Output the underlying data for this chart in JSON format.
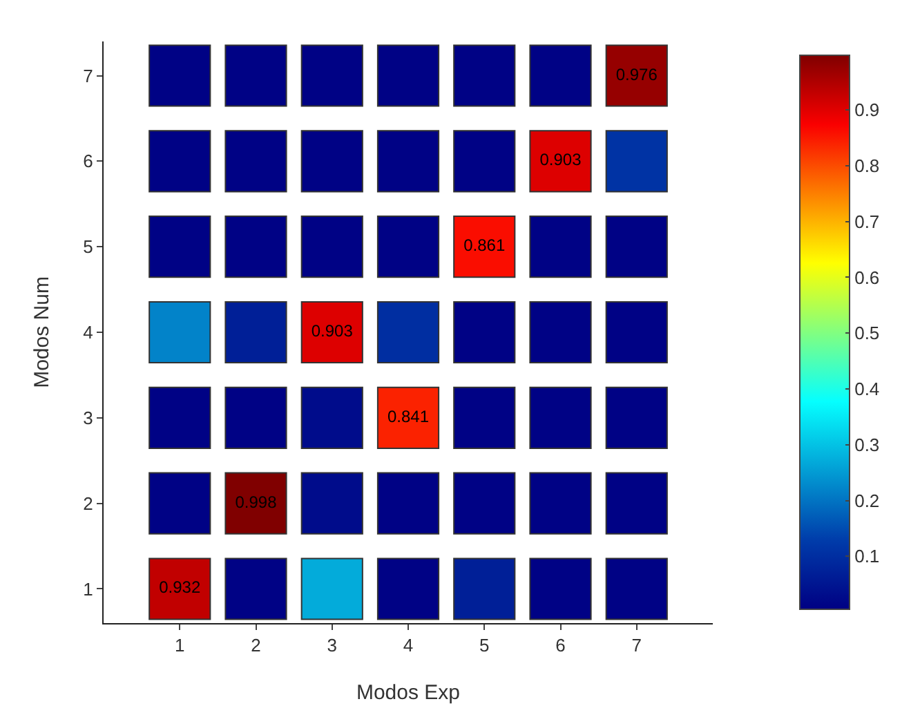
{
  "chart_data": {
    "type": "heatmap",
    "xlabel": "Modos Exp",
    "ylabel": "Modos Num",
    "categories": [
      "1",
      "2",
      "3",
      "4",
      "5",
      "6",
      "7"
    ],
    "y_categories": [
      "7",
      "6",
      "5",
      "4",
      "3",
      "2",
      "1"
    ],
    "cells": [
      [
        0.01,
        0.01,
        0.01,
        0.01,
        0.01,
        0.01,
        0.976
      ],
      [
        0.01,
        0.01,
        0.01,
        0.01,
        0.01,
        0.903,
        0.11
      ],
      [
        0.01,
        0.01,
        0.01,
        0.01,
        0.861,
        0.01,
        0.01
      ],
      [
        0.22,
        0.07,
        0.903,
        0.1,
        0.01,
        0.01,
        0.01
      ],
      [
        0.01,
        0.01,
        0.03,
        0.841,
        0.01,
        0.01,
        0.01
      ],
      [
        0.01,
        0.998,
        0.03,
        0.01,
        0.01,
        0.01,
        0.01
      ],
      [
        0.932,
        0.01,
        0.27,
        0.01,
        0.07,
        0.01,
        0.01
      ]
    ],
    "cell_labels": [
      [
        null,
        null,
        null,
        null,
        null,
        null,
        "0.976"
      ],
      [
        null,
        null,
        null,
        null,
        null,
        "0.903",
        null
      ],
      [
        null,
        null,
        null,
        null,
        "0.861",
        null,
        null
      ],
      [
        null,
        null,
        "0.903",
        null,
        null,
        null,
        null
      ],
      [
        null,
        null,
        null,
        "0.841",
        null,
        null,
        null
      ],
      [
        null,
        "0.998",
        null,
        null,
        null,
        null,
        null
      ],
      [
        "0.932",
        null,
        null,
        null,
        null,
        null,
        null
      ]
    ],
    "clim": [
      0.005,
      0.998
    ],
    "cticks": [
      0.1,
      0.2,
      0.3,
      0.4,
      0.5,
      0.6,
      0.7,
      0.8,
      0.9
    ]
  }
}
